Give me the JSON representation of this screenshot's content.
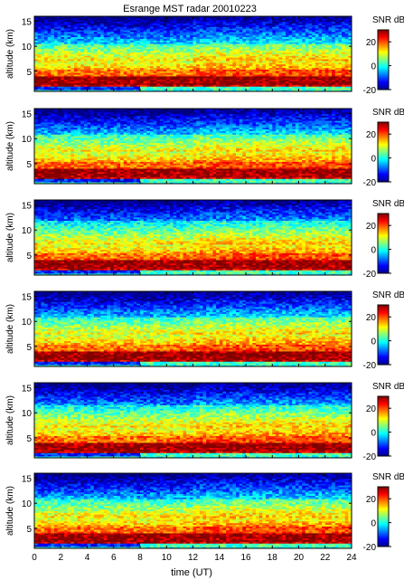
{
  "figure": {
    "title": "Esrange MST radar 20010223",
    "xlabel": "time (UT)",
    "ylabel": "altitude (km)",
    "colorbar_label": "SNR dB"
  },
  "chart_data": {
    "type": "heatmap",
    "title": "Esrange MST radar 20010223",
    "xlabel": "time (UT)",
    "ylabel": "altitude (km)",
    "xlim": [
      0,
      24
    ],
    "ylim": [
      1.0,
      16.0
    ],
    "x_ticks": [
      0,
      2,
      4,
      6,
      8,
      10,
      12,
      14,
      16,
      18,
      20,
      22,
      24
    ],
    "y_ticks": [
      5,
      10,
      15
    ],
    "colorbar": {
      "label": "SNR dB",
      "range": [
        -20,
        30
      ],
      "ticks": [
        -20,
        0,
        20
      ],
      "colormap": "jet"
    },
    "panels": [
      {
        "panel": 1,
        "description": "strong echo 2-4 km (>25 dB), moderate 5-10 km, weak above 12 km",
        "layer_km": [
          7.0,
          10.5
        ],
        "low_band_km": [
          1.5,
          2.0
        ]
      },
      {
        "panel": 2,
        "description": "strong echo 2-4 km, decreasing after 8 UT",
        "layer_km": [
          7.5,
          11.0
        ],
        "low_band_km": [
          1.5,
          2.0
        ]
      },
      {
        "panel": 3,
        "description": "strong echo 2-4 km, weak layer near 7 km",
        "layer_km": [
          7.0,
          12.0
        ],
        "low_band_km": [
          1.5,
          2.0
        ]
      },
      {
        "panel": 4,
        "description": "strong echo 2-4 km, enhanced 5-9 km",
        "layer_km": [
          7.5,
          11.0
        ],
        "low_band_km": [
          1.5,
          2.0
        ]
      },
      {
        "panel": 5,
        "description": "strong echo 2-4 km, layer near 7 km",
        "layer_km": [
          7.0,
          11.5
        ],
        "low_band_km": [
          1.5,
          2.0
        ]
      },
      {
        "panel": 6,
        "description": "strong echo 2-4 km, layer near 7 km",
        "layer_km": [
          7.0,
          11.0
        ],
        "low_band_km": [
          1.5,
          2.0
        ]
      }
    ]
  }
}
